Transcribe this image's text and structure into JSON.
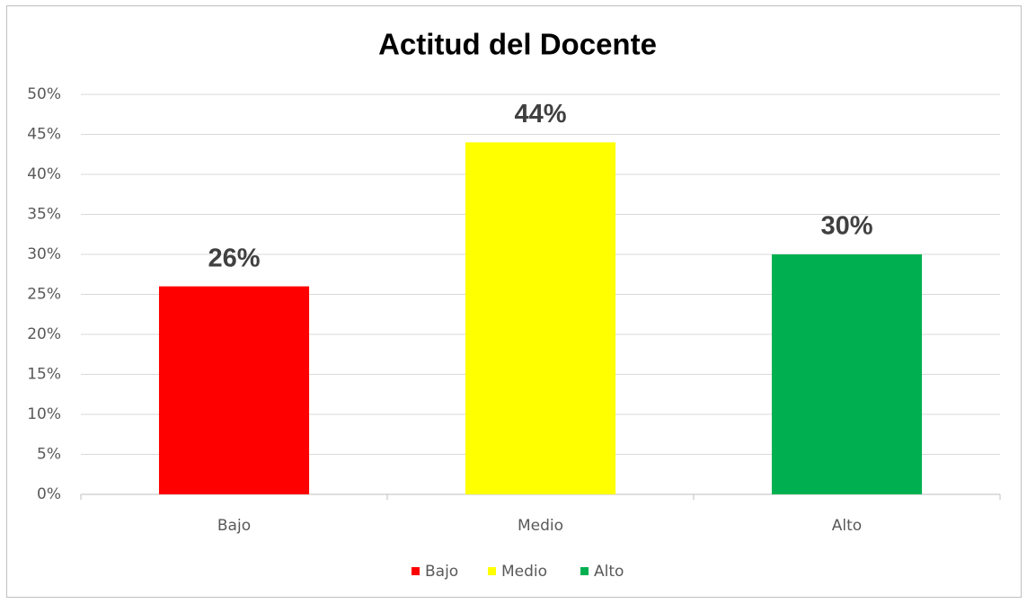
{
  "chart_data": {
    "type": "bar",
    "title": "Actitud del Docente",
    "categories": [
      "Bajo",
      "Medio",
      "Alto"
    ],
    "values": [
      26,
      44,
      30
    ],
    "value_labels": [
      "26%",
      "44%",
      "30%"
    ],
    "colors": [
      "#ff0000",
      "#ffff00",
      "#00b050"
    ],
    "ylim": [
      0,
      50
    ],
    "yticks": [
      {
        "value": 0,
        "label": "0%"
      },
      {
        "value": 5,
        "label": "5%"
      },
      {
        "value": 10,
        "label": "10%"
      },
      {
        "value": 15,
        "label": "15%"
      },
      {
        "value": 20,
        "label": "20%"
      },
      {
        "value": 25,
        "label": "25%"
      },
      {
        "value": 30,
        "label": "30%"
      },
      {
        "value": 35,
        "label": "35%"
      },
      {
        "value": 40,
        "label": "40%"
      },
      {
        "value": 45,
        "label": "45%"
      },
      {
        "value": 50,
        "label": "50%"
      }
    ],
    "grid": true,
    "legend": "bottom"
  }
}
